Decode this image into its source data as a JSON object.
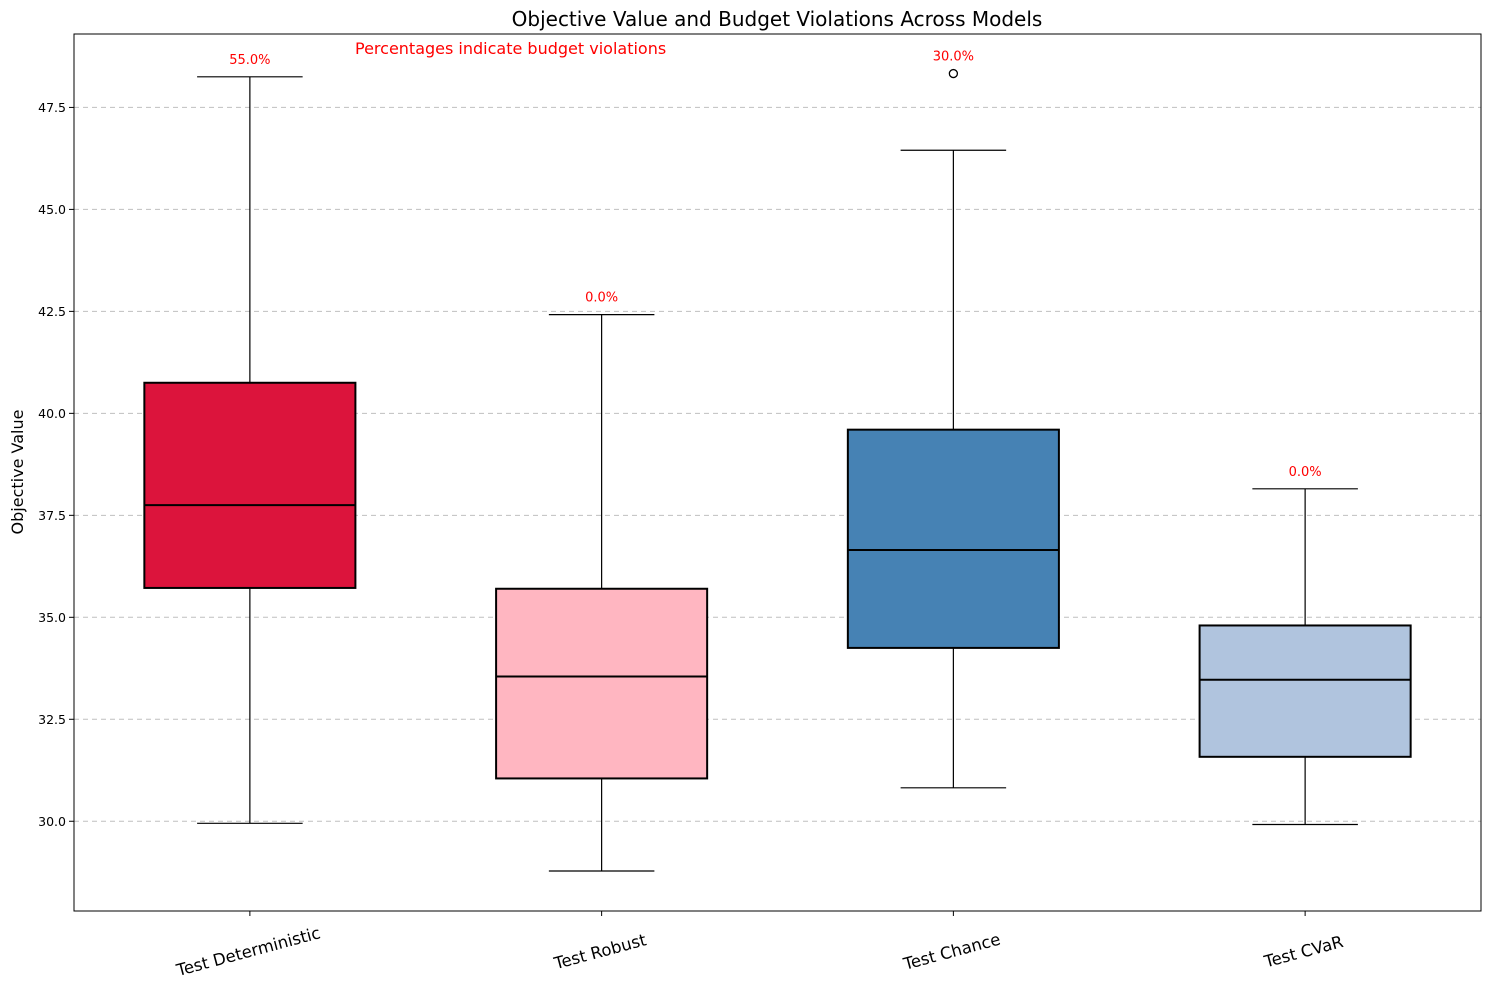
{
  "chart_data": {
    "type": "box",
    "title": "Objective Value and Budget Violations Across Models",
    "xlabel": "",
    "ylabel": "Objective Value",
    "annotation": "Percentages indicate budget violations",
    "ylim": [
      27.8,
      49.3
    ],
    "yticks": [
      "30.0",
      "32.5",
      "35.0",
      "37.5",
      "40.0",
      "42.5",
      "45.0",
      "47.5"
    ],
    "grid": "y-dashed",
    "annotation_color": "#ff0000",
    "categories": [
      "Test Deterministic",
      "Test Robust",
      "Test Chance",
      "Test CVaR"
    ],
    "boxes": [
      {
        "category": "Test Deterministic",
        "whisker_low": 29.95,
        "q1": 35.72,
        "median": 37.75,
        "q3": 40.75,
        "whisker_high": 48.25,
        "outliers": [],
        "violation": "55.0%",
        "color": "#dc143c"
      },
      {
        "category": "Test Robust",
        "whisker_low": 28.78,
        "q1": 31.05,
        "median": 33.55,
        "q3": 35.7,
        "whisker_high": 42.42,
        "outliers": [],
        "violation": "0.0%",
        "color": "#ffb6c1"
      },
      {
        "category": "Test Chance",
        "whisker_low": 30.82,
        "q1": 34.25,
        "median": 36.65,
        "q3": 39.6,
        "whisker_high": 46.45,
        "outliers": [
          48.33
        ],
        "violation": "30.0%",
        "color": "#4682b4"
      },
      {
        "category": "Test CVaR",
        "whisker_low": 29.92,
        "q1": 31.58,
        "median": 33.47,
        "q3": 34.8,
        "whisker_high": 38.15,
        "outliers": [],
        "violation": "0.0%",
        "color": "#b0c4de"
      }
    ]
  }
}
